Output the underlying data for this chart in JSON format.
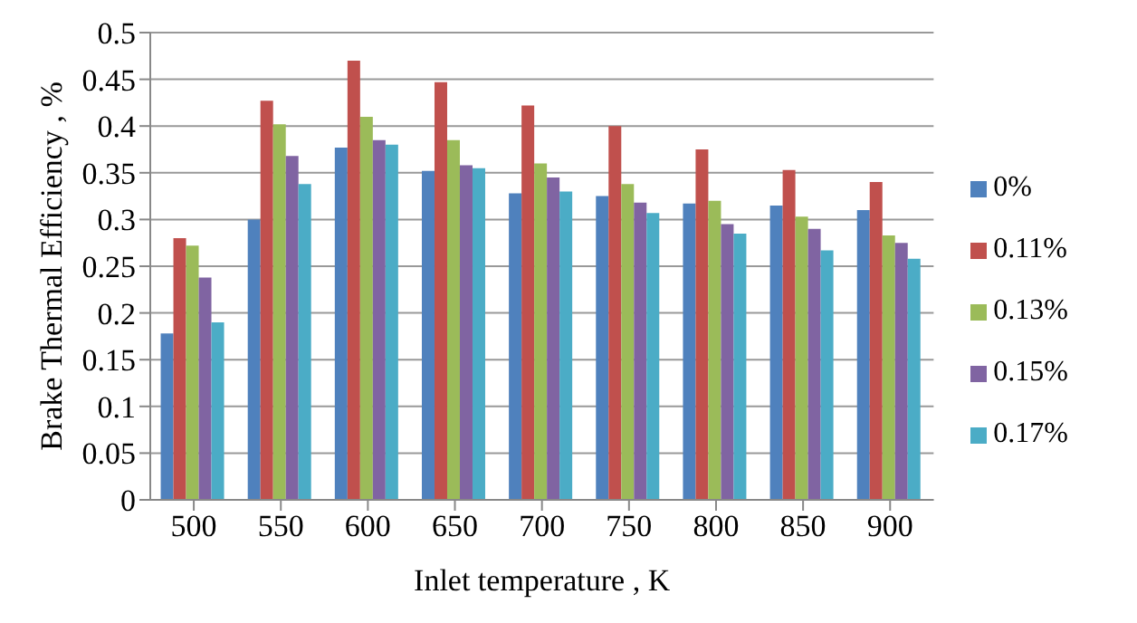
{
  "chart_data": {
    "type": "bar",
    "xlabel": "Inlet temperature , K",
    "ylabel": "Brake Thermal Efficiency , %",
    "categories": [
      "500",
      "550",
      "600",
      "650",
      "700",
      "750",
      "800",
      "850",
      "900"
    ],
    "series": [
      {
        "name": "0%",
        "color": "#4f81bd",
        "values": [
          0.178,
          0.3,
          0.377,
          0.352,
          0.328,
          0.325,
          0.317,
          0.315,
          0.31
        ]
      },
      {
        "name": "0.11%",
        "color": "#c0504d",
        "values": [
          0.28,
          0.427,
          0.47,
          0.447,
          0.422,
          0.4,
          0.375,
          0.353,
          0.34
        ]
      },
      {
        "name": "0.13%",
        "color": "#9bbb59",
        "values": [
          0.272,
          0.402,
          0.41,
          0.385,
          0.36,
          0.338,
          0.32,
          0.303,
          0.283
        ]
      },
      {
        "name": "0.15%",
        "color": "#8064a2",
        "values": [
          0.238,
          0.368,
          0.385,
          0.358,
          0.345,
          0.318,
          0.295,
          0.29,
          0.275
        ]
      },
      {
        "name": "0.17%",
        "color": "#4bacc6",
        "values": [
          0.19,
          0.338,
          0.38,
          0.355,
          0.33,
          0.307,
          0.285,
          0.267,
          0.258
        ]
      }
    ],
    "ylim": [
      0,
      0.5
    ],
    "yticks": [
      0,
      0.05,
      0.1,
      0.15,
      0.2,
      0.25,
      0.3,
      0.35,
      0.4,
      0.45,
      0.5
    ],
    "grid": "y",
    "legend": "right"
  }
}
